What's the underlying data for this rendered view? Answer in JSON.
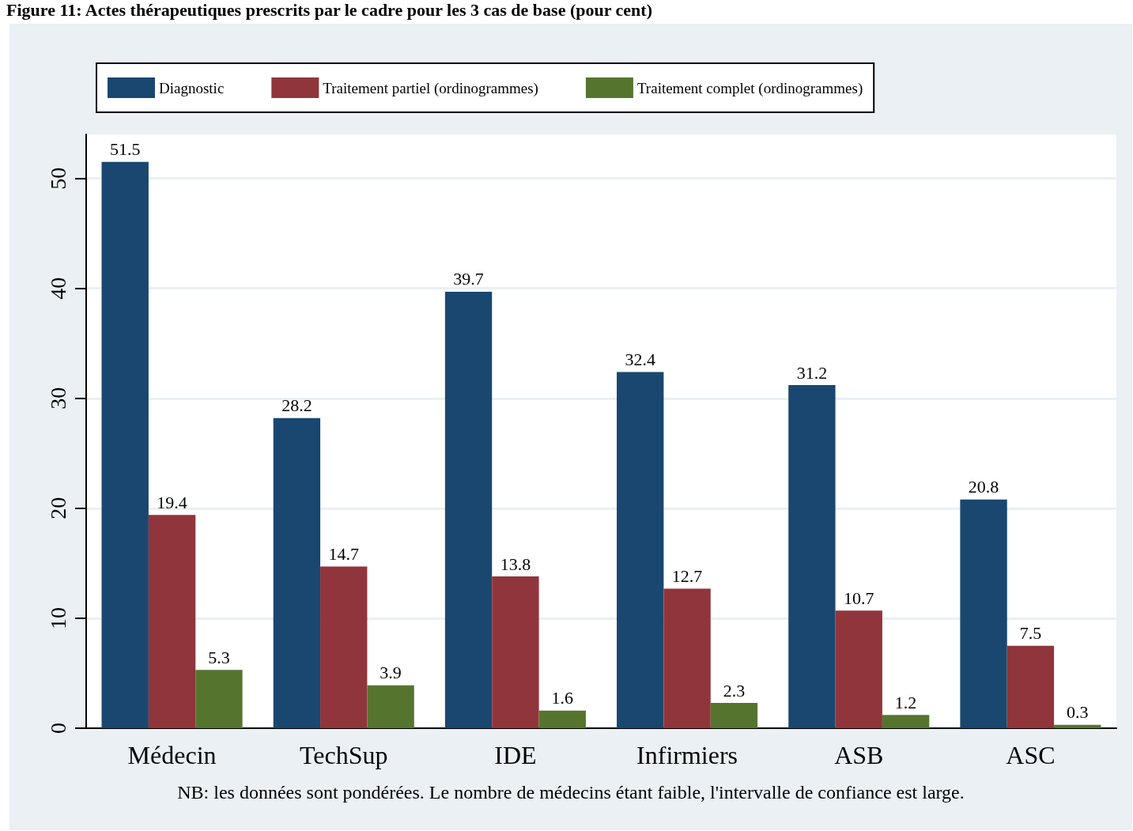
{
  "chart_data": {
    "type": "bar",
    "title": "Figure 11: Actes thérapeutiques prescrits par le cadre pour les 3 cas de base (pour cent)",
    "categories": [
      "Médecin",
      "TechSup",
      "IDE",
      "Infirmiers",
      "ASB",
      "ASC"
    ],
    "series": [
      {
        "name": "Diagnostic",
        "color": "#1a476f",
        "values": [
          51.5,
          28.2,
          39.7,
          32.4,
          31.2,
          20.8
        ]
      },
      {
        "name": "Traitement partiel (ordinogrammes)",
        "color": "#90353b",
        "values": [
          19.4,
          14.7,
          13.8,
          12.7,
          10.7,
          7.5
        ]
      },
      {
        "name": "Traitement complet (ordinogrammes)",
        "color": "#55752f",
        "values": [
          5.3,
          3.9,
          1.6,
          2.3,
          1.2,
          0.3
        ]
      }
    ],
    "ylim": [
      0,
      54
    ],
    "yticks": [
      0,
      10,
      20,
      30,
      40,
      50
    ],
    "grid": "y",
    "legend": "top",
    "data_labels": true,
    "annotations": [
      "NB: les données sont pondérées. Le nombre de médecins étant faible, l'intervalle de confiance est large."
    ]
  }
}
